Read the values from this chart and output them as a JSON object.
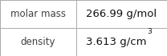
{
  "rows": [
    {
      "label": "molar mass",
      "value": "266.99 g/mol",
      "superscript": null
    },
    {
      "label": "density",
      "value": "3.613 g/cm",
      "superscript": "3"
    }
  ],
  "background_color": "#ffffff",
  "border_color": "#aaaaaa",
  "label_color": "#404040",
  "value_color": "#111111",
  "font_size_label": 8.5,
  "font_size_value": 9.5,
  "font_size_super": 6.5,
  "col_split": 0.455,
  "fig_width": 2.08,
  "fig_height": 0.7,
  "dpi": 100
}
